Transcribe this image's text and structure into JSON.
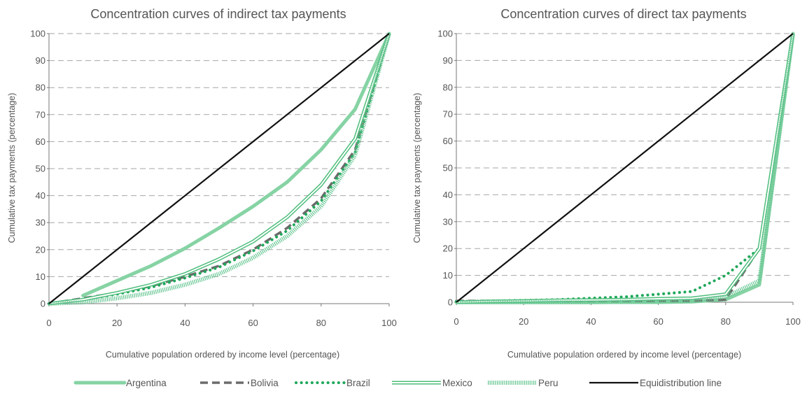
{
  "chart_data": [
    {
      "type": "line",
      "title": "Concentration curves of indirect tax payments",
      "xlabel": "Cumulative population ordered by income level (percentage)",
      "ylabel": "Cumulative tax payments (percentage)",
      "xlim": [
        0,
        100
      ],
      "ylim": [
        0,
        100
      ],
      "xticks": [
        0,
        20,
        40,
        60,
        80,
        100
      ],
      "yticks": [
        0,
        10,
        20,
        30,
        40,
        50,
        60,
        70,
        80,
        90,
        100
      ],
      "grid": "horizontal dashed",
      "series": [
        {
          "name": "Argentina",
          "x": [
            10,
            20,
            30,
            40,
            50,
            60,
            70,
            80,
            90,
            100
          ],
          "y": [
            3,
            8.5,
            14,
            20.5,
            28,
            36,
            45,
            57,
            72,
            100
          ]
        },
        {
          "name": "Bolivia",
          "x": [
            0,
            10,
            20,
            30,
            40,
            50,
            60,
            70,
            80,
            90,
            100
          ],
          "y": [
            0,
            2,
            4,
            6.5,
            10,
            14,
            20,
            28,
            39,
            57,
            100
          ]
        },
        {
          "name": "Brazil",
          "x": [
            0,
            10,
            20,
            30,
            40,
            50,
            60,
            70,
            80,
            90,
            100
          ],
          "y": [
            0,
            1.5,
            3.5,
            6,
            9.5,
            13.5,
            19.5,
            27,
            38,
            56,
            100
          ]
        },
        {
          "name": "Mexico",
          "x": [
            0,
            10,
            20,
            30,
            40,
            50,
            60,
            70,
            80,
            90,
            100
          ],
          "y": [
            0,
            1.5,
            4,
            7,
            11,
            16.5,
            23,
            32,
            44,
            61,
            100
          ]
        },
        {
          "name": "Peru",
          "x": [
            0,
            10,
            20,
            30,
            40,
            50,
            60,
            70,
            80,
            90,
            100
          ],
          "y": [
            0,
            0.5,
            2,
            4,
            7,
            11,
            17,
            25,
            36,
            55,
            100
          ]
        },
        {
          "name": "Equidistribution line",
          "x": [
            0,
            100
          ],
          "y": [
            0,
            100
          ]
        }
      ]
    },
    {
      "type": "line",
      "title": "Concentration curves of direct tax payments",
      "xlabel": "Cumulative population ordered by income level (percentage)",
      "ylabel": "Cumulative tax payments (percentage)",
      "xlim": [
        0,
        100
      ],
      "ylim": [
        0,
        100
      ],
      "xticks": [
        0,
        20,
        40,
        60,
        80,
        100
      ],
      "yticks": [
        0,
        10,
        20,
        30,
        40,
        50,
        60,
        70,
        80,
        90,
        100
      ],
      "grid": "horizontal dashed",
      "series": [
        {
          "name": "Argentina",
          "x": [
            0,
            10,
            20,
            30,
            40,
            50,
            60,
            70,
            80,
            90,
            100
          ],
          "y": [
            0,
            0,
            0,
            0,
            0,
            0,
            0,
            0.2,
            1,
            6.5,
            100
          ]
        },
        {
          "name": "Bolivia",
          "x": [
            0,
            10,
            20,
            30,
            40,
            50,
            60,
            70,
            80,
            90,
            100
          ],
          "y": [
            0.5,
            0.5,
            0.5,
            0.5,
            0.5,
            0.5,
            0.5,
            0.5,
            1,
            20,
            100
          ]
        },
        {
          "name": "Brazil",
          "x": [
            0,
            10,
            20,
            30,
            40,
            50,
            60,
            70,
            80,
            90,
            100
          ],
          "y": [
            0.3,
            0.5,
            0.7,
            1,
            1.5,
            2,
            3,
            4,
            10,
            20,
            100
          ]
        },
        {
          "name": "Mexico",
          "x": [
            0,
            10,
            20,
            30,
            40,
            50,
            60,
            70,
            80,
            90,
            100
          ],
          "y": [
            0,
            0.3,
            0.5,
            0.7,
            0.8,
            1,
            1.3,
            1.5,
            3,
            20,
            100
          ]
        },
        {
          "name": "Peru",
          "x": [
            0,
            10,
            20,
            30,
            40,
            50,
            60,
            70,
            80,
            90,
            100
          ],
          "y": [
            0,
            0,
            0,
            0,
            0,
            0.2,
            0.3,
            0.5,
            2,
            8,
            100
          ]
        },
        {
          "name": "Equidistribution line",
          "x": [
            0,
            100
          ],
          "y": [
            0,
            100
          ]
        }
      ]
    }
  ],
  "legend": {
    "placement": "bottom",
    "items": [
      {
        "label": "Argentina",
        "style": "solid-thick",
        "color": "#86d3a4"
      },
      {
        "label": "Bolivia",
        "style": "dashed",
        "color": "#6b6b6b"
      },
      {
        "label": "Brazil",
        "style": "dotted",
        "color": "#1fa85a"
      },
      {
        "label": "Mexico",
        "style": "double",
        "color": "#4dbd7b"
      },
      {
        "label": "Peru",
        "style": "hatched",
        "color": "#67c693"
      },
      {
        "label": "Equidistribution line",
        "style": "solid",
        "color": "#111111"
      }
    ]
  }
}
